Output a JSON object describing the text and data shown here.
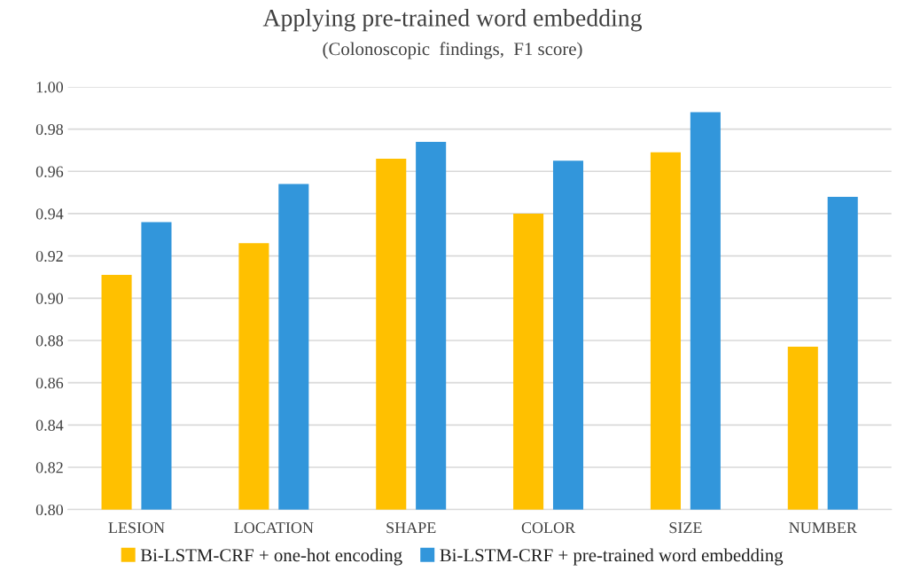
{
  "chart_data": {
    "type": "bar",
    "title": "Applying pre-trained word embedding",
    "subtitle": "(Colonoscopic  findings,  F1 score)",
    "categories": [
      "LESION",
      "LOCATION",
      "SHAPE",
      "COLOR",
      "SIZE",
      "NUMBER"
    ],
    "series": [
      {
        "name": "Bi-LSTM-CRF + one-hot encoding",
        "color": "#ffc000",
        "values": [
          0.911,
          0.926,
          0.966,
          0.94,
          0.969,
          0.877
        ]
      },
      {
        "name": "Bi-LSTM-CRF + pre-trained word embedding",
        "color": "#3296db",
        "values": [
          0.936,
          0.954,
          0.974,
          0.965,
          0.988,
          0.948
        ]
      }
    ],
    "ylim": [
      0.8,
      1.0
    ],
    "yticks": [
      {
        "value": 0.8,
        "label": "0.80"
      },
      {
        "value": 0.82,
        "label": "0.82"
      },
      {
        "value": 0.84,
        "label": "0.84"
      },
      {
        "value": 0.86,
        "label": "0.86"
      },
      {
        "value": 0.88,
        "label": "0.88"
      },
      {
        "value": 0.9,
        "label": "0.90"
      },
      {
        "value": 0.92,
        "label": "0.92"
      },
      {
        "value": 0.94,
        "label": "0.94"
      },
      {
        "value": 0.96,
        "label": "0.96"
      },
      {
        "value": 0.98,
        "label": "0.98"
      },
      {
        "value": 1.0,
        "label": "1.00"
      }
    ],
    "grid": "y",
    "legend": "bottom"
  }
}
